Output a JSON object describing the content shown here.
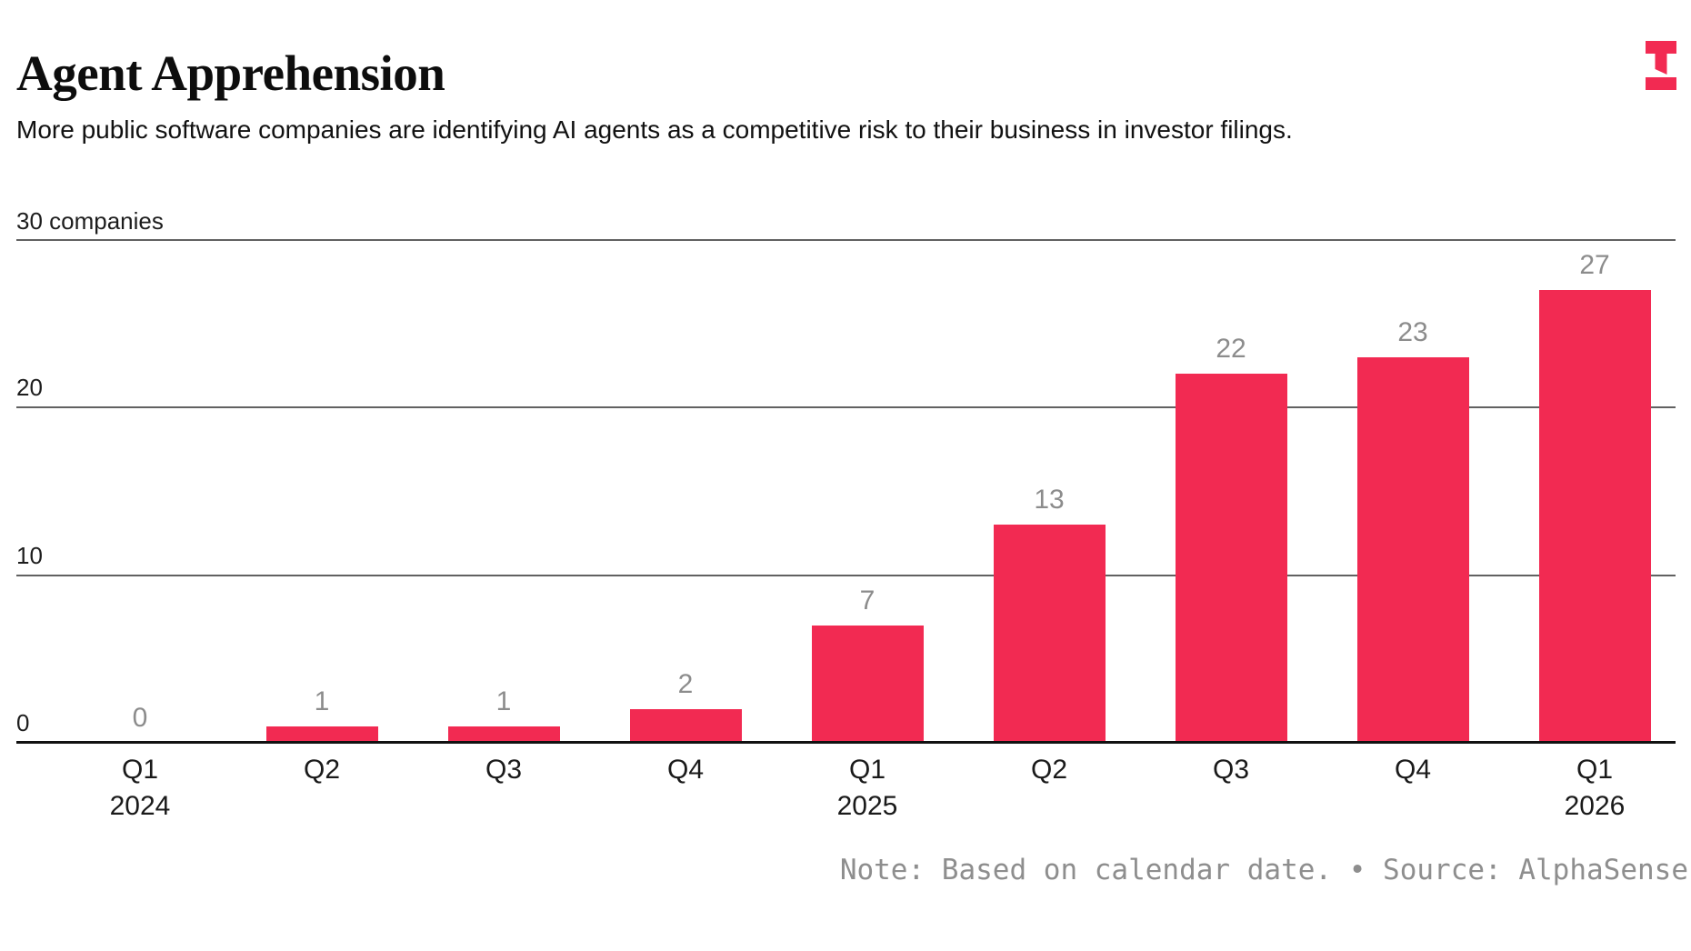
{
  "header": {
    "title": "Agent Apprehension",
    "subtitle": "More public software companies are identifying AI agents as a competitive risk to their business in investor filings."
  },
  "brand": {
    "logo": "the-information-logo",
    "color": "#F22A52"
  },
  "chart_data": {
    "type": "bar",
    "title": "Agent Apprehension",
    "categories": [
      "Q1 2024",
      "Q2 2024",
      "Q3 2024",
      "Q4 2024",
      "Q1 2025",
      "Q2 2025",
      "Q3 2025",
      "Q4 2025",
      "Q1 2026"
    ],
    "x_tick_labels": [
      "Q1",
      "Q2",
      "Q3",
      "Q4",
      "Q1",
      "Q2",
      "Q3",
      "Q4",
      "Q1"
    ],
    "x_year_labels": {
      "0": "2024",
      "4": "2025",
      "8": "2026"
    },
    "values": [
      0,
      1,
      1,
      2,
      7,
      13,
      22,
      23,
      27
    ],
    "bar_labels": [
      "0",
      "1",
      "1",
      "2",
      "7",
      "13",
      "22",
      "23",
      "27"
    ],
    "ylabel_top": "30 companies",
    "y_ticks": [
      0,
      10,
      20,
      30
    ],
    "y_gridline_values": [
      30,
      20,
      10
    ],
    "y_left_labels": [
      20,
      10,
      0
    ],
    "ylim": [
      0,
      30
    ],
    "grid": "horizontal",
    "legend": "none",
    "bar_color": "#F22A52",
    "value_label_color": "#8C8C8C"
  },
  "note": {
    "text": "Note: Based on calendar date. • Source: AlphaSense"
  }
}
